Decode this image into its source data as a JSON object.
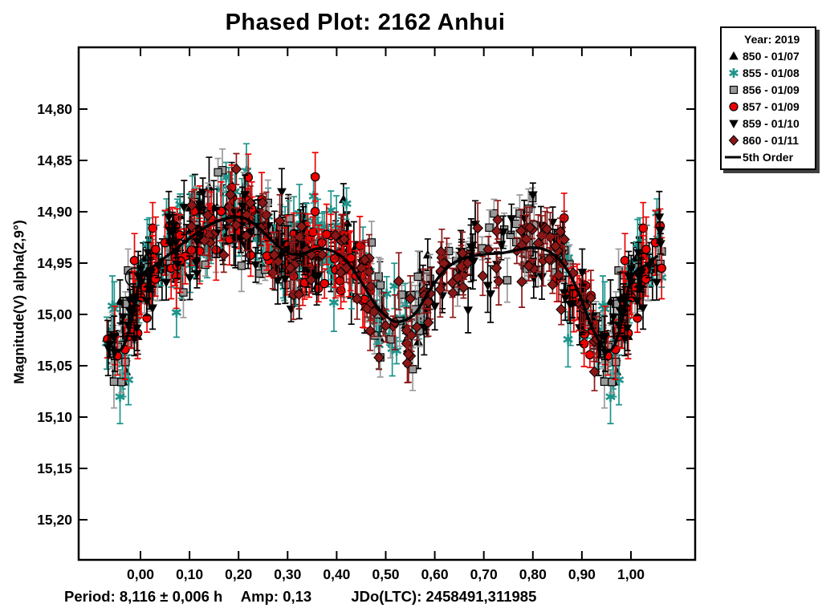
{
  "title": "Phased Plot: 2162 Anhui",
  "footer": {
    "period_label": "Period: 8,116 ± 0,006 h",
    "amp_label": "Amp: 0,13",
    "jdo_label": "JDo(LTC): 2458491,311985"
  },
  "legend": {
    "title": "Year: 2019",
    "items": [
      {
        "marker": "triangle-up",
        "color": "#000000",
        "label": "850 - 01/07"
      },
      {
        "marker": "asterisk",
        "color": "#1f948b",
        "label": "855 - 01/08"
      },
      {
        "marker": "square",
        "color": "#999999",
        "label": "856 - 01/09"
      },
      {
        "marker": "circle",
        "color": "#ee0000",
        "label": "857 - 01/09"
      },
      {
        "marker": "triangle-down",
        "color": "#000000",
        "label": "859 - 01/10"
      },
      {
        "marker": "diamond",
        "color": "#8b1717",
        "label": "860 - 01/11"
      },
      {
        "marker": "line",
        "color": "#000000",
        "label": "5th Order"
      }
    ]
  },
  "chart_data": {
    "type": "scatter",
    "title": "Phased Plot: 2162 Anhui",
    "ylabel": "Magnitude(V) alpha(2,9°)",
    "xlabel": "",
    "background": "#ffffff",
    "axis_color": "#000000",
    "grid": false,
    "xlim": [
      -0.126,
      1.131
    ],
    "ylim": [
      15.241,
      14.742
    ],
    "y_axis_inverted": true,
    "x_ticks": [
      {
        "value": 0.0,
        "label": "0,00"
      },
      {
        "value": 0.1,
        "label": "0,10"
      },
      {
        "value": 0.2,
        "label": "0,20"
      },
      {
        "value": 0.3,
        "label": "0,30"
      },
      {
        "value": 0.4,
        "label": "0,40"
      },
      {
        "value": 0.5,
        "label": "0,50"
      },
      {
        "value": 0.6,
        "label": "0,60"
      },
      {
        "value": 0.7,
        "label": "0,70"
      },
      {
        "value": 0.8,
        "label": "0,80"
      },
      {
        "value": 0.9,
        "label": "0,90"
      },
      {
        "value": 1.0,
        "label": "1,00"
      }
    ],
    "y_ticks": [
      {
        "value": 14.8,
        "label": "14,80"
      },
      {
        "value": 14.85,
        "label": "14,85"
      },
      {
        "value": 14.9,
        "label": "14,90"
      },
      {
        "value": 14.95,
        "label": "14,95"
      },
      {
        "value": 15.0,
        "label": "15,00"
      },
      {
        "value": 15.05,
        "label": "15,05"
      },
      {
        "value": 15.1,
        "label": "15,10"
      },
      {
        "value": 15.15,
        "label": "15,15"
      },
      {
        "value": 15.2,
        "label": "15,20"
      }
    ],
    "fit_curve": {
      "name": "5th Order",
      "color": "#000000",
      "points": [
        [
          0.0,
          14.965
        ],
        [
          0.03,
          14.952
        ],
        [
          0.06,
          14.941
        ],
        [
          0.1,
          14.926
        ],
        [
          0.14,
          14.913
        ],
        [
          0.18,
          14.906
        ],
        [
          0.21,
          14.906
        ],
        [
          0.24,
          14.915
        ],
        [
          0.27,
          14.929
        ],
        [
          0.3,
          14.94
        ],
        [
          0.33,
          14.941
        ],
        [
          0.36,
          14.936
        ],
        [
          0.39,
          14.938
        ],
        [
          0.42,
          14.948
        ],
        [
          0.45,
          14.968
        ],
        [
          0.48,
          14.991
        ],
        [
          0.51,
          15.005
        ],
        [
          0.53,
          15.007
        ],
        [
          0.56,
          14.999
        ],
        [
          0.59,
          14.976
        ],
        [
          0.62,
          14.957
        ],
        [
          0.65,
          14.947
        ],
        [
          0.68,
          14.943
        ],
        [
          0.71,
          14.941
        ],
        [
          0.74,
          14.94
        ],
        [
          0.77,
          14.937
        ],
        [
          0.8,
          14.935
        ],
        [
          0.83,
          14.938
        ],
        [
          0.86,
          14.95
        ],
        [
          0.89,
          14.975
        ],
        [
          0.92,
          15.012
        ],
        [
          0.94,
          15.03
        ],
        [
          0.955,
          15.036
        ],
        [
          0.97,
          15.026
        ],
        [
          0.985,
          14.999
        ],
        [
          1.0,
          14.965
        ]
      ]
    },
    "series": [
      {
        "name": "850 - 01/07",
        "marker": "triangle-up",
        "color": "#000000",
        "error_color": "#000000",
        "phase_window": [
          0.93,
          1.6
        ],
        "n_points": 130,
        "scatter_sigma": 0.02,
        "err_range": [
          0.008,
          0.03
        ],
        "seed": 101
      },
      {
        "name": "855 - 01/08",
        "marker": "asterisk",
        "color": "#1f948b",
        "error_color": "#1f948b",
        "phase_window": [
          0.85,
          1.57
        ],
        "n_points": 140,
        "scatter_sigma": 0.021,
        "err_range": [
          0.008,
          0.03
        ],
        "seed": 202
      },
      {
        "name": "856 - 01/09",
        "marker": "square",
        "color": "#999999",
        "error_color": "#9a9a9a",
        "phase_window": [
          0.44,
          1.32
        ],
        "n_points": 130,
        "scatter_sigma": 0.019,
        "err_range": [
          0.007,
          0.026
        ],
        "seed": 303
      },
      {
        "name": "857 - 01/09",
        "marker": "circle",
        "color": "#ee0000",
        "error_color": "#ee0000",
        "phase_window": [
          0.84,
          1.47
        ],
        "n_points": 140,
        "scatter_sigma": 0.02,
        "err_range": [
          0.01,
          0.032
        ],
        "seed": 404
      },
      {
        "name": "859 - 01/10",
        "marker": "triangle-down",
        "color": "#000000",
        "error_color": "#000000",
        "phase_window": [
          0.55,
          1.37
        ],
        "n_points": 125,
        "scatter_sigma": 0.02,
        "err_range": [
          0.007,
          0.028
        ],
        "seed": 505
      },
      {
        "name": "860 - 01/11",
        "marker": "diamond",
        "color": "#8b1717",
        "error_color": "#8b1717",
        "phase_window": [
          0.1,
          0.93
        ],
        "n_points": 130,
        "scatter_sigma": 0.019,
        "err_range": [
          0.008,
          0.028
        ],
        "seed": 606
      }
    ],
    "zero_phase_marker": {
      "phase": -0.011,
      "mag": 14.964,
      "type": "open-circle"
    },
    "period_h": "8,116 ± 0,006",
    "amplitude_mag": "0,13",
    "jdo_ltc": "2458491,311985",
    "year": "2019"
  }
}
